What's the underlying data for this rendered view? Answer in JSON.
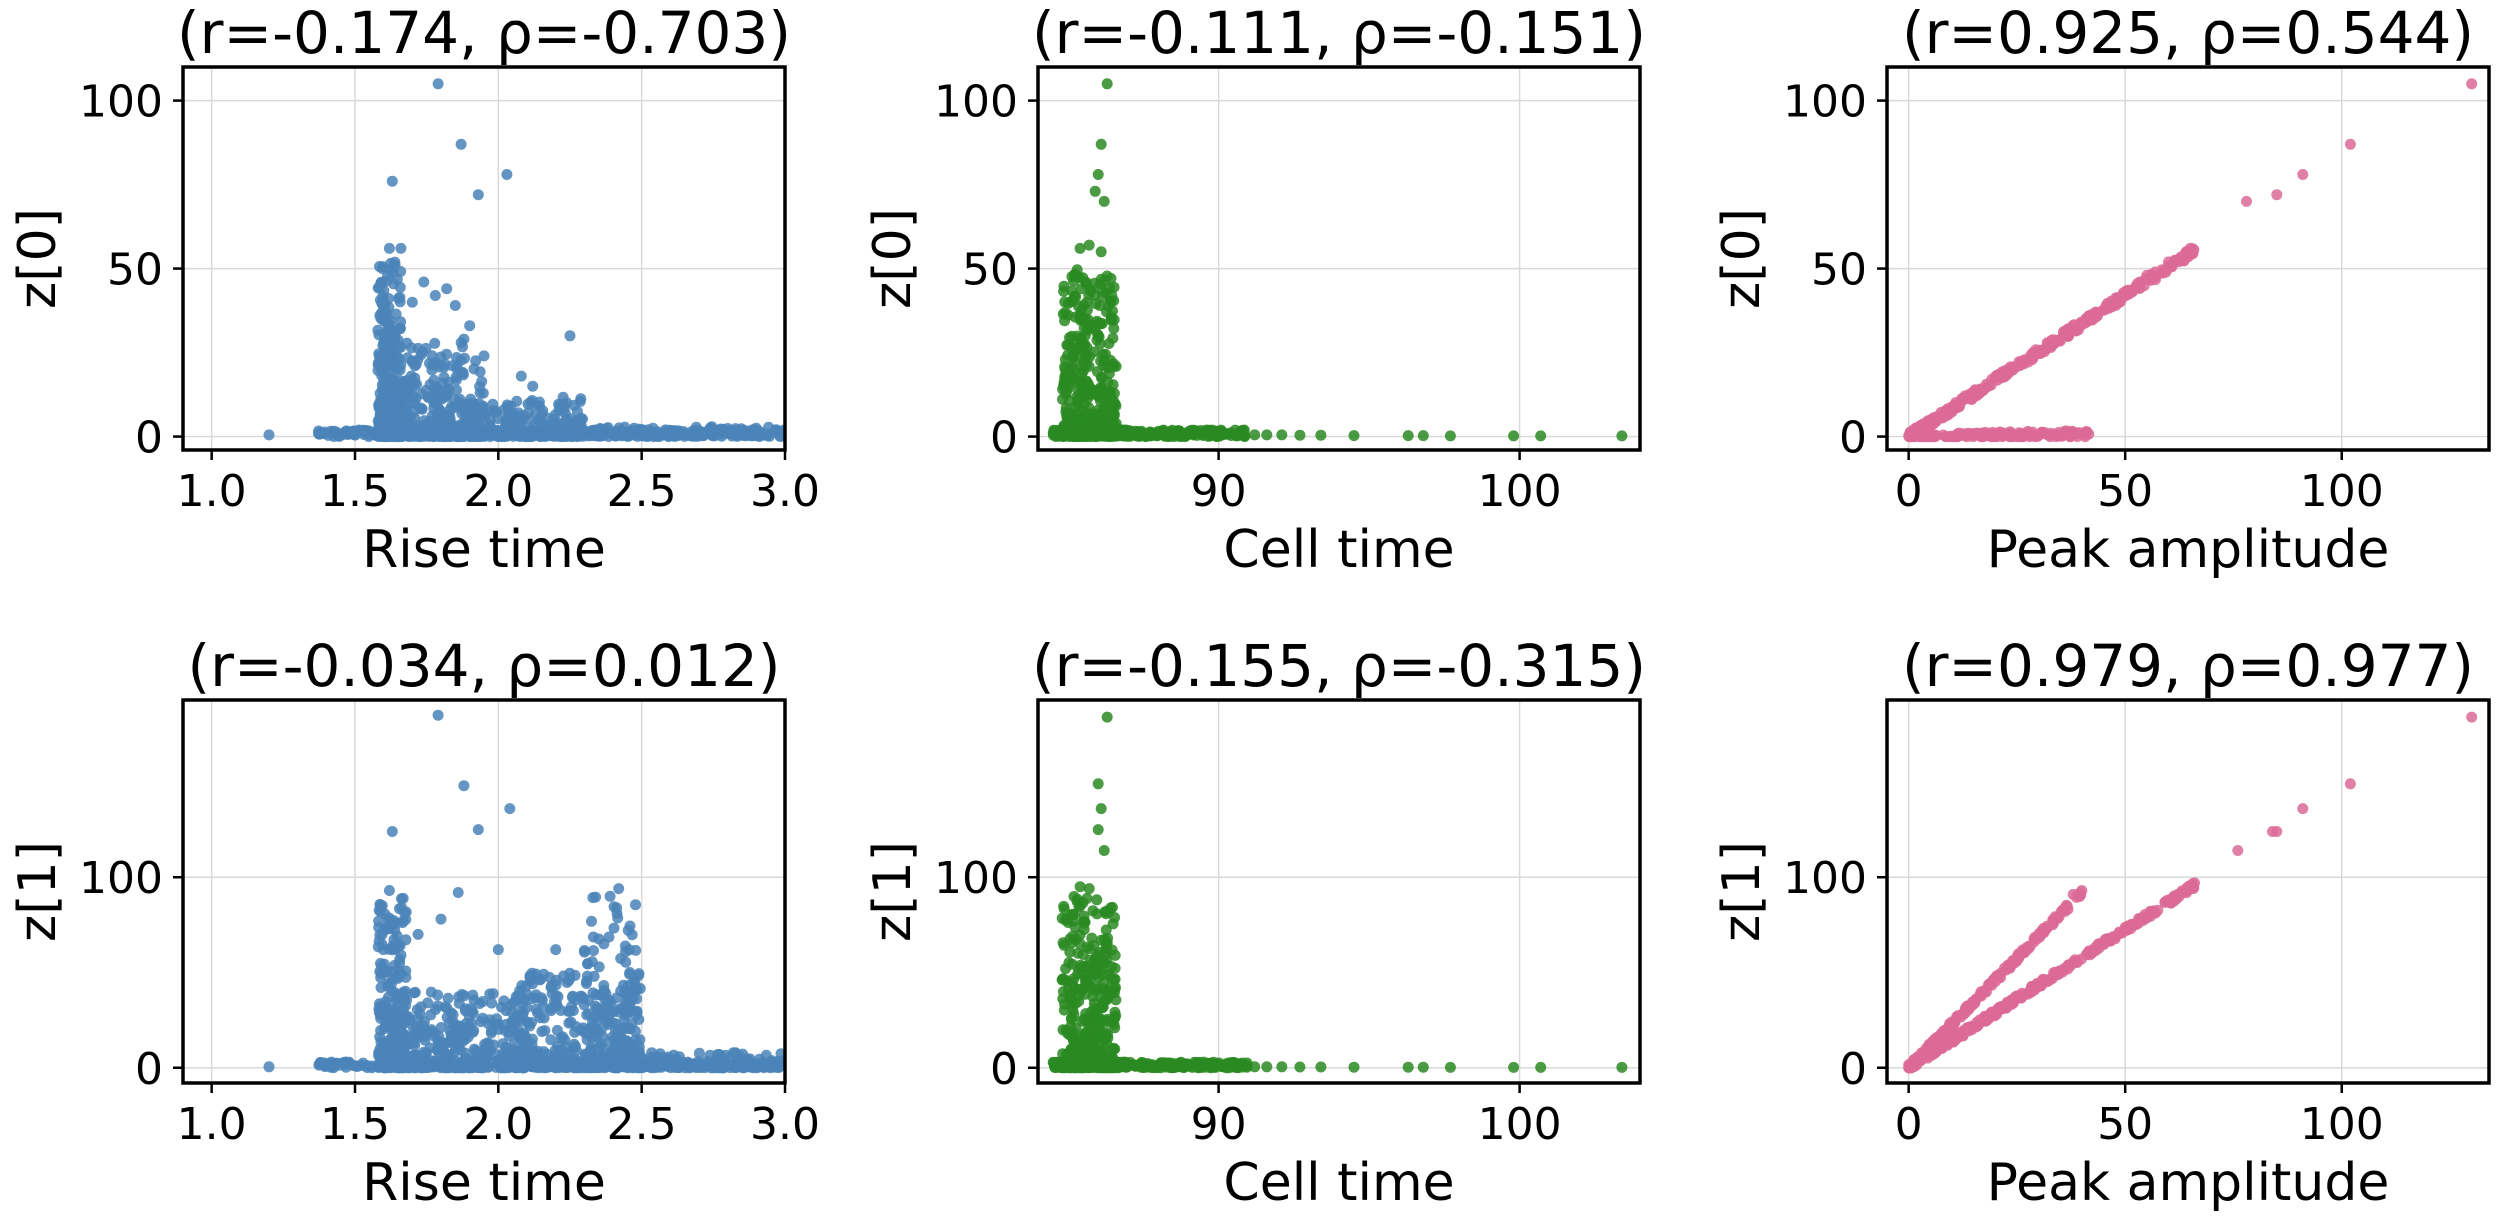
{
  "chart_data": [
    {
      "type": "scatter",
      "panel": "top-left",
      "title": "(r=-0.174, ρ=-0.703)",
      "xlabel": "Rise time",
      "ylabel": "z[0]",
      "xlim": [
        0.9,
        3.0
      ],
      "ylim": [
        -4,
        110
      ],
      "xticks": [
        1.0,
        1.5,
        2.0,
        2.5,
        3.0
      ],
      "xticklabels": [
        "1.0",
        "1.5",
        "2.0",
        "2.5",
        "3.0"
      ],
      "yticks": [
        0,
        50,
        100
      ],
      "yticklabels": [
        "0",
        "50",
        "100"
      ],
      "grid": true,
      "color": "#4a84b8",
      "clusters": [
        {
          "x": [
            1.37,
            3.0
          ],
          "y": [
            0,
            2
          ],
          "n": 320,
          "yskew": 1
        },
        {
          "x": [
            1.58,
            1.66
          ],
          "y": [
            0,
            52
          ],
          "n": 300,
          "yskew": 2.2
        },
        {
          "x": [
            1.6,
            1.95
          ],
          "y": [
            0,
            28
          ],
          "n": 320,
          "yskew": 2.6
        },
        {
          "x": [
            1.75,
            2.3
          ],
          "y": [
            0,
            12
          ],
          "n": 260,
          "yskew": 2.4
        },
        {
          "x": [
            2.2,
            3.0
          ],
          "y": [
            0,
            3
          ],
          "n": 120,
          "yskew": 1.5
        }
      ],
      "points": [
        [
          1.2,
          0.5
        ],
        [
          1.79,
          105
        ],
        [
          1.87,
          87
        ],
        [
          1.93,
          72
        ],
        [
          2.03,
          78
        ],
        [
          1.63,
          76
        ],
        [
          1.62,
          56
        ],
        [
          1.66,
          56
        ],
        [
          1.82,
          44
        ],
        [
          1.85,
          39
        ],
        [
          1.9,
          33
        ],
        [
          1.88,
          29
        ],
        [
          2.25,
          30
        ],
        [
          1.95,
          24
        ],
        [
          2.08,
          18
        ],
        [
          2.12,
          15
        ],
        [
          1.7,
          40
        ],
        [
          1.78,
          42
        ],
        [
          1.74,
          46
        ]
      ]
    },
    {
      "type": "scatter",
      "panel": "top-center",
      "title": "(r=-0.111, ρ=-0.151)",
      "xlabel": "Cell time",
      "ylabel": "z[0]",
      "xlim": [
        84.0,
        104.0
      ],
      "ylim": [
        -4,
        110
      ],
      "xticks": [
        90,
        100
      ],
      "xticklabels": [
        "90",
        "100"
      ],
      "yticks": [
        0,
        50,
        100
      ],
      "yticklabels": [
        "0",
        "50",
        "100"
      ],
      "grid": true,
      "color": "#2a8a22",
      "clusters": [
        {
          "x": [
            84.5,
            87.0
          ],
          "y": [
            0,
            2
          ],
          "n": 280,
          "yskew": 1
        },
        {
          "x": [
            84.8,
            86.6
          ],
          "y": [
            0,
            50
          ],
          "n": 380,
          "yskew": 2.3
        },
        {
          "x": [
            87.0,
            91.0
          ],
          "y": [
            0,
            2
          ],
          "n": 140,
          "yskew": 1.5
        }
      ],
      "points": [
        [
          86.3,
          105
        ],
        [
          86.1,
          87
        ],
        [
          86.0,
          78
        ],
        [
          85.9,
          73
        ],
        [
          86.2,
          70
        ],
        [
          85.4,
          56
        ],
        [
          85.7,
          57
        ],
        [
          86.1,
          55
        ],
        [
          91.2,
          0.5
        ],
        [
          91.6,
          0.5
        ],
        [
          92.1,
          0.5
        ],
        [
          92.7,
          0.4
        ],
        [
          93.4,
          0.4
        ],
        [
          94.5,
          0.3
        ],
        [
          96.3,
          0.3
        ],
        [
          96.8,
          0.3
        ],
        [
          97.7,
          0.2
        ],
        [
          99.8,
          0.2
        ],
        [
          100.7,
          0.2
        ],
        [
          103.4,
          0.2
        ]
      ]
    },
    {
      "type": "scatter",
      "panel": "top-right",
      "title": "(r=0.925, ρ=0.544)",
      "xlabel": "Peak amplitude",
      "ylabel": "z[0]",
      "xlim": [
        -5,
        134
      ],
      "ylim": [
        -4,
        110
      ],
      "xticks": [
        0,
        50,
        100
      ],
      "xticklabels": [
        "0",
        "50",
        "100"
      ],
      "yticks": [
        0,
        50,
        100
      ],
      "yticklabels": [
        "0",
        "50",
        "100"
      ],
      "grid": true,
      "color": "#dc6a96",
      "lines": [
        {
          "x": [
            0,
            66
          ],
          "slope": 0.84,
          "jitter": 1.2,
          "n": 330
        },
        {
          "x": [
            0,
            42
          ],
          "slope": 0.02,
          "jitter": 1.0,
          "n": 170
        }
      ],
      "points": [
        [
          130,
          105
        ],
        [
          102,
          87
        ],
        [
          91,
          78
        ],
        [
          85,
          72
        ],
        [
          78,
          70
        ],
        [
          65,
          56
        ],
        [
          60,
          52
        ],
        [
          55,
          48
        ]
      ]
    },
    {
      "type": "scatter",
      "panel": "bottom-left",
      "title": "(r=-0.034, ρ=0.012)",
      "xlabel": "Rise time",
      "ylabel": "z[1]",
      "xlim": [
        0.9,
        3.0
      ],
      "ylim": [
        -8,
        193
      ],
      "xticks": [
        1.0,
        1.5,
        2.0,
        2.5,
        3.0
      ],
      "xticklabels": [
        "1.0",
        "1.5",
        "2.0",
        "2.5",
        "3.0"
      ],
      "yticks": [
        0,
        100
      ],
      "yticklabels": [
        "0",
        "100"
      ],
      "grid": true,
      "color": "#4a84b8",
      "clusters": [
        {
          "x": [
            1.37,
            3.0
          ],
          "y": [
            0,
            3
          ],
          "n": 320,
          "yskew": 1
        },
        {
          "x": [
            1.58,
            1.68
          ],
          "y": [
            0,
            90
          ],
          "n": 260,
          "yskew": 2.3
        },
        {
          "x": [
            1.65,
            2.1
          ],
          "y": [
            0,
            40
          ],
          "n": 320,
          "yskew": 2.4
        },
        {
          "x": [
            2.05,
            2.5
          ],
          "y": [
            0,
            50
          ],
          "n": 320,
          "yskew": 2.2
        },
        {
          "x": [
            2.3,
            2.48
          ],
          "y": [
            0,
            90
          ],
          "n": 120,
          "yskew": 2.0
        },
        {
          "x": [
            2.45,
            3.0
          ],
          "y": [
            0,
            8
          ],
          "n": 120,
          "yskew": 2.0
        }
      ],
      "points": [
        [
          1.2,
          0.5
        ],
        [
          1.79,
          185
        ],
        [
          1.88,
          148
        ],
        [
          2.04,
          136
        ],
        [
          1.93,
          125
        ],
        [
          1.63,
          124
        ],
        [
          1.62,
          93
        ],
        [
          1.86,
          92
        ],
        [
          1.8,
          78
        ],
        [
          2.2,
          62
        ],
        [
          2.42,
          94
        ],
        [
          2.39,
          90
        ],
        [
          2.0,
          62
        ],
        [
          1.72,
          70
        ]
      ]
    },
    {
      "type": "scatter",
      "panel": "bottom-center",
      "title": "(r=-0.155, ρ=-0.315)",
      "xlabel": "Cell time",
      "ylabel": "z[1]",
      "xlim": [
        84.0,
        104.0
      ],
      "ylim": [
        -8,
        193
      ],
      "xticks": [
        90,
        100
      ],
      "xticklabels": [
        "90",
        "100"
      ],
      "yticks": [
        0,
        100
      ],
      "yticklabels": [
        "0",
        "100"
      ],
      "grid": true,
      "color": "#2a8a22",
      "clusters": [
        {
          "x": [
            84.5,
            87.0
          ],
          "y": [
            0,
            3
          ],
          "n": 280,
          "yskew": 1
        },
        {
          "x": [
            84.8,
            86.6
          ],
          "y": [
            0,
            90
          ],
          "n": 380,
          "yskew": 2.2
        },
        {
          "x": [
            87.0,
            91.0
          ],
          "y": [
            0,
            3
          ],
          "n": 140,
          "yskew": 1.5
        }
      ],
      "points": [
        [
          86.3,
          184
        ],
        [
          86.0,
          149
        ],
        [
          86.1,
          136
        ],
        [
          86.0,
          125
        ],
        [
          86.2,
          114
        ],
        [
          85.7,
          94
        ],
        [
          85.4,
          95
        ],
        [
          91.2,
          0.5
        ],
        [
          91.6,
          0.5
        ],
        [
          92.1,
          0.5
        ],
        [
          92.7,
          0.4
        ],
        [
          93.4,
          0.4
        ],
        [
          94.5,
          0.3
        ],
        [
          96.3,
          0.3
        ],
        [
          96.8,
          0.3
        ],
        [
          97.7,
          0.2
        ],
        [
          99.8,
          0.2
        ],
        [
          100.7,
          0.2
        ],
        [
          103.4,
          0.2
        ]
      ]
    },
    {
      "type": "scatter",
      "panel": "bottom-right",
      "title": "(r=0.979, ρ=0.977)",
      "xlabel": "Peak amplitude",
      "ylabel": "z[1]",
      "xlim": [
        -5,
        134
      ],
      "ylim": [
        -8,
        193
      ],
      "xticks": [
        0,
        50,
        100
      ],
      "xticklabels": [
        "0",
        "50",
        "100"
      ],
      "yticks": [
        0,
        100
      ],
      "yticklabels": [
        "0",
        "100"
      ],
      "grid": true,
      "color": "#dc6a96",
      "lines": [
        {
          "x": [
            0,
            66
          ],
          "slope": 1.45,
          "jitter": 1.5,
          "n": 330
        },
        {
          "x": [
            0,
            40
          ],
          "slope": 2.3,
          "jitter": 1.5,
          "n": 220
        }
      ],
      "points": [
        [
          130,
          184
        ],
        [
          102,
          149
        ],
        [
          91,
          136
        ],
        [
          85,
          124
        ],
        [
          84,
          124
        ],
        [
          76,
          114
        ],
        [
          66,
          97
        ],
        [
          40,
          93
        ],
        [
          38,
          91
        ]
      ]
    }
  ]
}
